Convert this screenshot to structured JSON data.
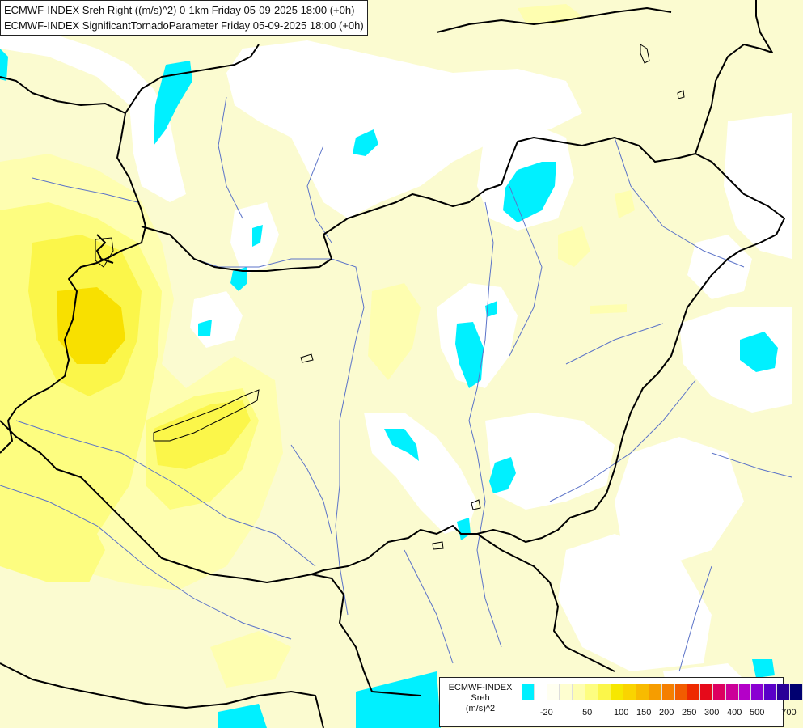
{
  "header": {
    "line1": "ECMWF-INDEX Sreh Right ((m/s)^2) 0-1km Friday 05-09-2025 18:00 (+0h)",
    "line2": "ECMWF-INDEX SignificantTornadoParameter Friday 05-09-2025 18:00 (+0h)"
  },
  "legend": {
    "title": "ECMWF-INDEX",
    "variable": "Sreh",
    "unit": "(m/s)^2",
    "colors": [
      "#00f0ff",
      "#ffffff",
      "#fffff0",
      "#fefed0",
      "#fefeb0",
      "#fdfd80",
      "#fbf64a",
      "#f6e700",
      "#fad400",
      "#f8bb00",
      "#f69d00",
      "#f57f00",
      "#f25c00",
      "#ee2a00",
      "#e60a1a",
      "#dd0060",
      "#cc0099",
      "#b400c8",
      "#8a00d2",
      "#5a00c8",
      "#2a0098",
      "#000070"
    ],
    "tick_labels": [
      "-20",
      "50",
      "100",
      "150",
      "200",
      "250",
      "300",
      "400",
      "500",
      "700"
    ]
  },
  "map": {
    "features": [
      "country-borders",
      "rivers",
      "lakes",
      "sreh-shading"
    ]
  }
}
